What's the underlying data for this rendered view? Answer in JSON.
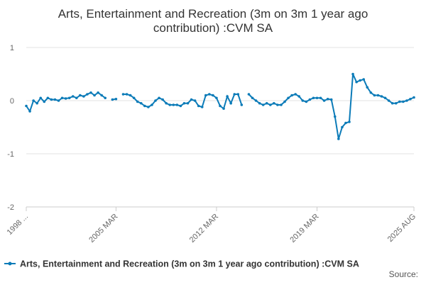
{
  "chart_data": {
    "type": "line",
    "title": "Arts, Entertainment and Recreation (3m on 3m 1 year ago contribution) :CVM SA",
    "categories": [
      "1998 ...",
      null,
      null,
      null,
      null,
      null,
      null,
      null,
      null,
      null,
      null,
      null,
      null,
      null,
      null,
      null,
      null,
      null,
      null,
      null,
      null,
      null,
      null,
      null,
      null,
      "2005 MAR",
      null,
      null,
      null,
      null,
      null,
      null,
      null,
      null,
      null,
      null,
      null,
      null,
      null,
      null,
      null,
      null,
      null,
      null,
      null,
      null,
      null,
      null,
      null,
      null,
      null,
      null,
      null,
      "2012 MAR",
      null,
      null,
      null,
      null,
      null,
      null,
      null,
      null,
      null,
      null,
      null,
      null,
      null,
      null,
      null,
      null,
      null,
      null,
      null,
      null,
      null,
      null,
      null,
      null,
      null,
      null,
      null,
      "2019 MAR",
      null,
      null,
      null,
      null,
      null,
      null,
      null,
      null,
      null,
      null,
      null,
      null,
      null,
      null,
      null,
      null,
      null,
      null,
      null,
      null,
      null,
      null,
      null,
      null,
      null,
      null,
      "2025 AUG"
    ],
    "series": [
      {
        "name": "Arts, Entertainment and Recreation (3m on 3m 1 year ago contribution) :CVM SA",
        "color": "#0b7bb8",
        "values": [
          -0.1,
          -0.2,
          0.0,
          -0.05,
          0.05,
          -0.02,
          0.05,
          0.02,
          0.02,
          0.0,
          0.05,
          0.04,
          0.05,
          0.08,
          0.05,
          0.1,
          0.08,
          0.12,
          0.15,
          0.1,
          0.15,
          0.1,
          0.05,
          null,
          0.02,
          0.03,
          null,
          0.12,
          0.12,
          0.1,
          0.05,
          -0.02,
          -0.05,
          -0.1,
          -0.12,
          -0.08,
          0.0,
          0.05,
          0.02,
          -0.05,
          -0.08,
          -0.08,
          -0.08,
          -0.1,
          -0.05,
          -0.05,
          0.02,
          0.0,
          -0.1,
          -0.12,
          0.1,
          0.12,
          0.1,
          0.05,
          -0.1,
          -0.15,
          0.08,
          -0.05,
          0.12,
          0.12,
          -0.08,
          null,
          0.12,
          0.05,
          0.0,
          -0.05,
          -0.08,
          -0.05,
          -0.08,
          -0.05,
          -0.08,
          -0.08,
          -0.02,
          0.05,
          0.1,
          0.12,
          0.08,
          0.0,
          -0.02,
          0.02,
          0.05,
          0.05,
          0.05,
          0.0,
          0.03,
          0.02,
          -0.3,
          -0.72,
          -0.5,
          -0.42,
          -0.4,
          0.5,
          0.35,
          0.38,
          0.4,
          0.25,
          0.15,
          0.1,
          0.1,
          0.08,
          0.05,
          0.0,
          -0.05,
          -0.05,
          -0.02,
          -0.02,
          0.0,
          0.03,
          0.06
        ]
      }
    ],
    "ylim": [
      -2,
      1
    ],
    "yticks": [
      -2,
      -1,
      0,
      1
    ],
    "grid": true,
    "source": "Source:"
  }
}
